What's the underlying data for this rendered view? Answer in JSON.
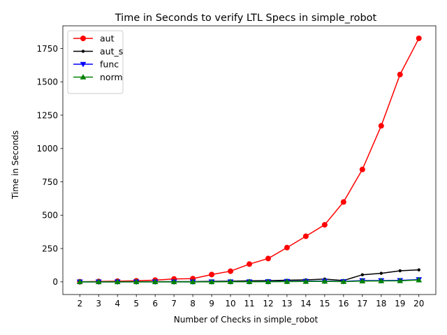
{
  "chart_data": {
    "type": "line",
    "title": "Time in Seconds to verify LTL Specs in simple_robot",
    "xlabel": "Number of Checks in simple_robot",
    "ylabel": "Time in Seconds",
    "x": [
      2,
      3,
      4,
      5,
      6,
      7,
      8,
      9,
      10,
      11,
      12,
      13,
      14,
      15,
      16,
      17,
      18,
      19,
      20
    ],
    "xticks": [
      "2",
      "3",
      "4",
      "5",
      "6",
      "7",
      "8",
      "9",
      "10",
      "11",
      "12",
      "13",
      "14",
      "15",
      "16",
      "17",
      "18",
      "19",
      "20"
    ],
    "yticks": [
      0,
      250,
      500,
      750,
      1000,
      1250,
      1500,
      1750
    ],
    "ylim": [
      -95,
      1920
    ],
    "xlim": [
      1.1,
      20.9
    ],
    "grid": false,
    "legend_position": "top-left",
    "series": [
      {
        "name": "aut",
        "color": "#ff0000",
        "marker": "circle",
        "values": [
          1,
          3,
          5,
          8,
          13,
          22,
          24,
          55,
          80,
          133,
          175,
          257,
          342,
          428,
          599,
          843,
          1170,
          1555,
          1826
        ]
      },
      {
        "name": "aut_s",
        "color": "#000000",
        "marker": "dot",
        "values": [
          0,
          0,
          0,
          1,
          1,
          2,
          2,
          4,
          5,
          8,
          9,
          12,
          15,
          21,
          10,
          53,
          64,
          83,
          90
        ]
      },
      {
        "name": "func",
        "color": "#0000ff",
        "marker": "triangle-down",
        "values": [
          0,
          0,
          0,
          0,
          0,
          0,
          0,
          1,
          1,
          1,
          2,
          4,
          5,
          6,
          3,
          10,
          10,
          11,
          17
        ]
      },
      {
        "name": "norm",
        "color": "#008000",
        "marker": "triangle-up",
        "values": [
          0,
          0,
          0,
          0,
          0,
          0,
          0,
          0,
          1,
          1,
          1,
          2,
          3,
          4,
          2,
          6,
          7,
          8,
          14
        ]
      }
    ]
  }
}
